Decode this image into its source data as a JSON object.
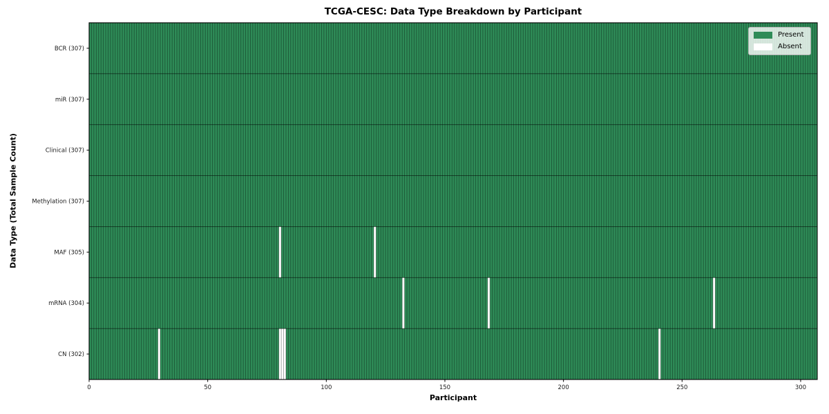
{
  "chart_data": {
    "type": "heatmap",
    "title": "TCGA-CESC: Data Type Breakdown by Participant",
    "xlabel": "Participant",
    "ylabel": "Data Type (Total Sample Count)",
    "n_participants": 307,
    "x_ticks": [
      0,
      50,
      100,
      150,
      200,
      250,
      300
    ],
    "rows": [
      {
        "label": "BCR (307)",
        "data_type": "BCR",
        "present_count": 307,
        "absent_participants": []
      },
      {
        "label": "miR (307)",
        "data_type": "miR",
        "present_count": 307,
        "absent_participants": []
      },
      {
        "label": "Clinical (307)",
        "data_type": "Clinical",
        "present_count": 307,
        "absent_participants": []
      },
      {
        "label": "Methylation (307)",
        "data_type": "Methylation",
        "present_count": 307,
        "absent_participants": []
      },
      {
        "label": "MAF (305)",
        "data_type": "MAF",
        "present_count": 305,
        "absent_participants": [
          80,
          120
        ]
      },
      {
        "label": "mRNA (304)",
        "data_type": "mRNA",
        "present_count": 304,
        "absent_participants": [
          132,
          168,
          263
        ]
      },
      {
        "label": "CN (302)",
        "data_type": "CN",
        "present_count": 302,
        "absent_participants": [
          29,
          80,
          81,
          82,
          240
        ]
      }
    ],
    "legend": {
      "position": "upper right",
      "entries": [
        {
          "label": "Present",
          "color": "#2e8b57"
        },
        {
          "label": "Absent",
          "color": "#ffffff"
        }
      ]
    },
    "colors": {
      "present": "#2e8b57",
      "absent": "#ffffff",
      "cell_edge": "#000000",
      "cell_edge_opacity": 0.42,
      "axis": "#000000",
      "tick_label": "#1a1a1a"
    },
    "axis_ranges": {
      "x": [
        0,
        307
      ],
      "y_rows": 7
    },
    "grid": "cell-edges"
  }
}
